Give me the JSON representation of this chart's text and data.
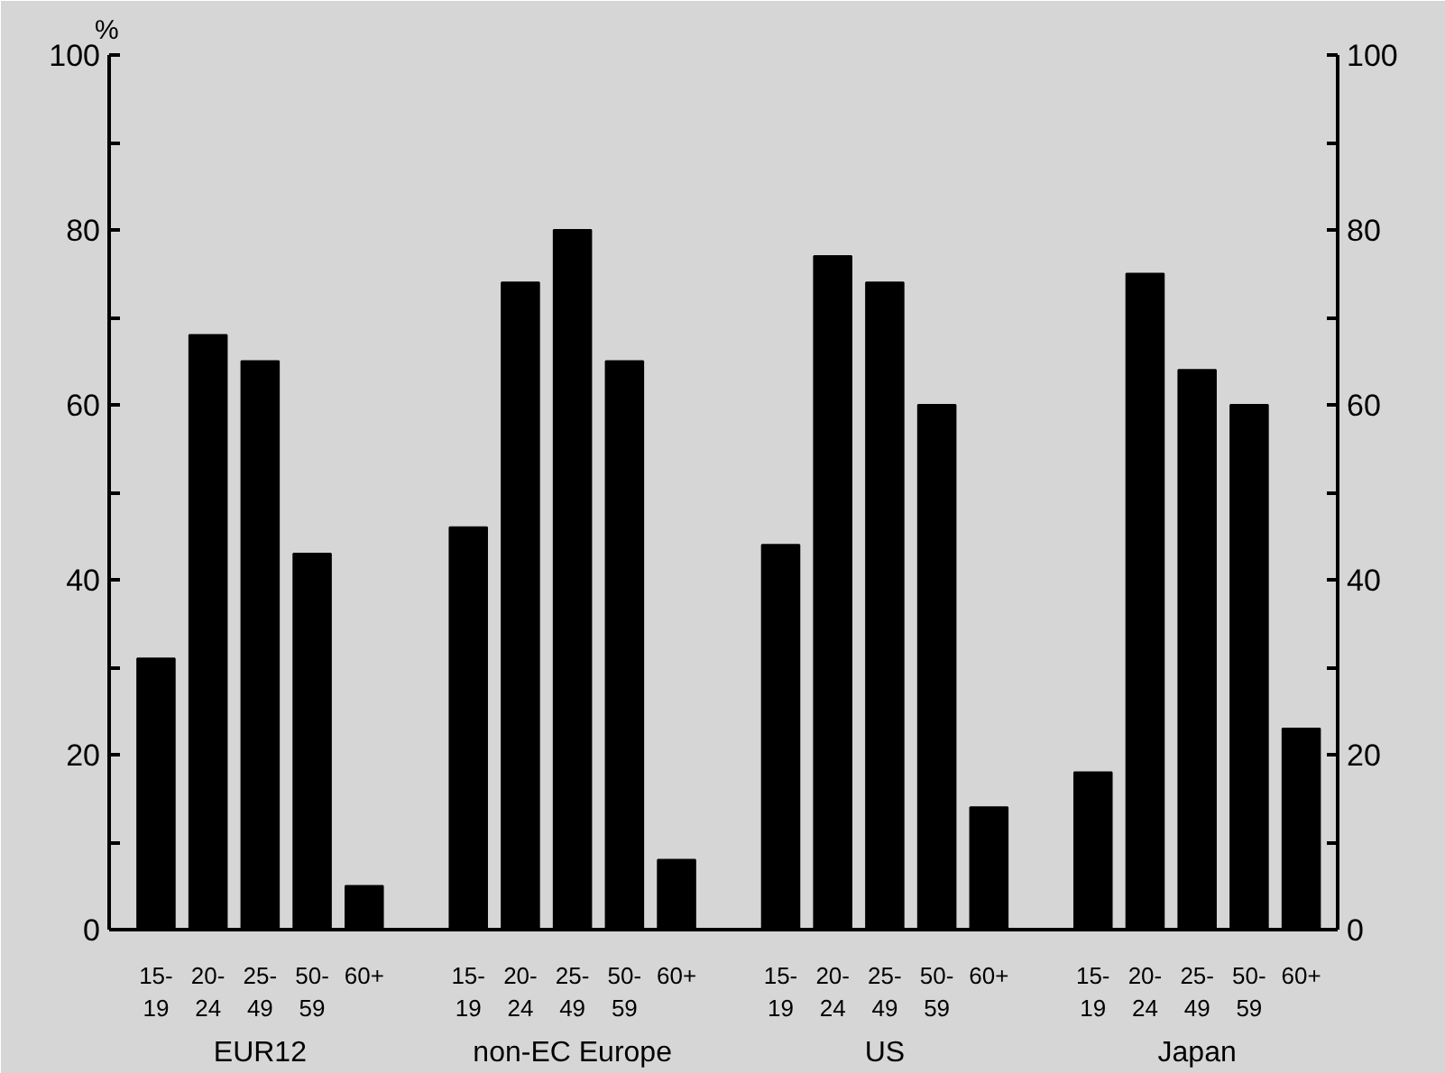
{
  "chart_data": {
    "type": "bar",
    "ylabel": "%",
    "categories": [
      "15-\n19",
      "20-\n24",
      "25-\n49",
      "50-\n59",
      "60+",
      "15-\n19",
      "20-\n24",
      "25-\n49",
      "50-\n59",
      "60+",
      "15-\n19",
      "20-\n24",
      "25-\n49",
      "50-\n59",
      "60+",
      "15-\n19",
      "20-\n24",
      "25-\n49",
      "50-\n59",
      "60+"
    ],
    "values": [
      31,
      68,
      65,
      43,
      5,
      46,
      74,
      80,
      65,
      8,
      44,
      77,
      74,
      60,
      14,
      18,
      75,
      64,
      60,
      23
    ],
    "color": "#000000",
    "annotations": [
      "EUR12",
      "non-EC Europe",
      "US",
      "Japan"
    ],
    "ylim": [
      0,
      100
    ],
    "yticks": [
      0,
      {
        "value": 10,
        "label": null
      },
      20,
      {
        "value": 30,
        "label": null
      },
      40,
      {
        "value": 50,
        "label": null
      },
      60,
      {
        "value": 70,
        "label": null
      },
      80,
      {
        "value": 90,
        "label": null
      },
      100
    ],
    "y2lim": [
      0,
      100
    ],
    "y2ticks": [
      0,
      {
        "value": 10,
        "label": null
      },
      20,
      {
        "value": 30,
        "label": null
      },
      40,
      {
        "value": 50,
        "label": null
      },
      60,
      {
        "value": 70,
        "label": null
      },
      80,
      {
        "value": 90,
        "label": null
      },
      100
    ],
    "grid": false
  }
}
